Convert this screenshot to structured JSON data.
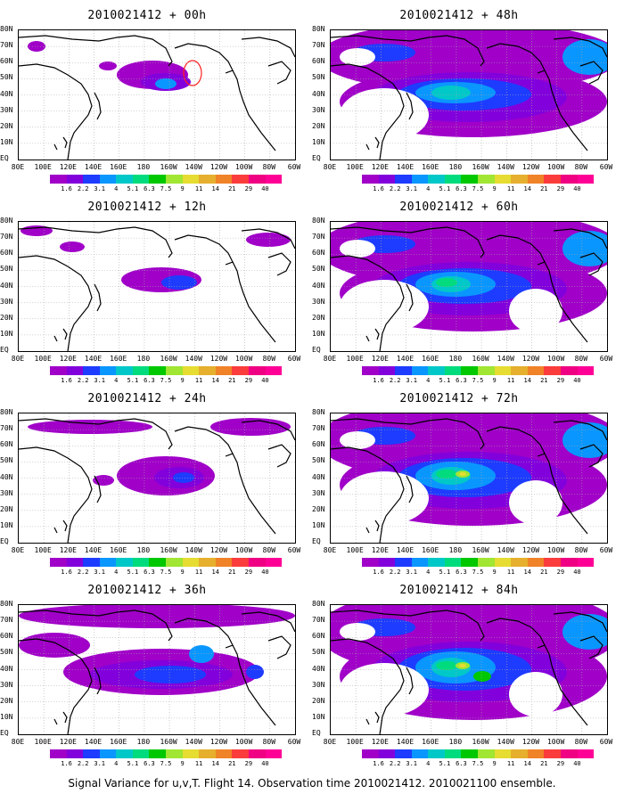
{
  "panels": [
    {
      "title": "2010021412 + 00h",
      "intensity": 0
    },
    {
      "title": "2010021412 + 48h",
      "intensity": 4
    },
    {
      "title": "2010021412 + 12h",
      "intensity": 1
    },
    {
      "title": "2010021412 + 60h",
      "intensity": 5
    },
    {
      "title": "2010021412 + 24h",
      "intensity": 2
    },
    {
      "title": "2010021412 + 72h",
      "intensity": 6
    },
    {
      "title": "2010021412 + 36h",
      "intensity": 3
    },
    {
      "title": "2010021412 + 84h",
      "intensity": 7
    }
  ],
  "lat_labels": [
    "80N",
    "70N",
    "60N",
    "50N",
    "40N",
    "30N",
    "20N",
    "10N",
    "EQ"
  ],
  "lon_labels": [
    "80E",
    "100E",
    "120E",
    "140E",
    "160E",
    "180",
    "160W",
    "140W",
    "120W",
    "100W",
    "80W",
    "60W"
  ],
  "colorbar": {
    "labels": [
      "1.6",
      "2.2",
      "3.1",
      "4",
      "5.1",
      "6.3",
      "7.5",
      "9",
      "11",
      "14",
      "21",
      "29",
      "40"
    ],
    "colors": [
      "#a000c8",
      "#8200dc",
      "#1e3cff",
      "#0a96ff",
      "#00c8c8",
      "#00dc7d",
      "#00c800",
      "#a0e632",
      "#e6dc32",
      "#e6af2d",
      "#f08228",
      "#fa3c3c",
      "#f00082",
      "#ff0096"
    ]
  },
  "caption": "Signal Variance for u,v,T. Flight 14. Observation time 2010021412. 2010021100 ensemble."
}
